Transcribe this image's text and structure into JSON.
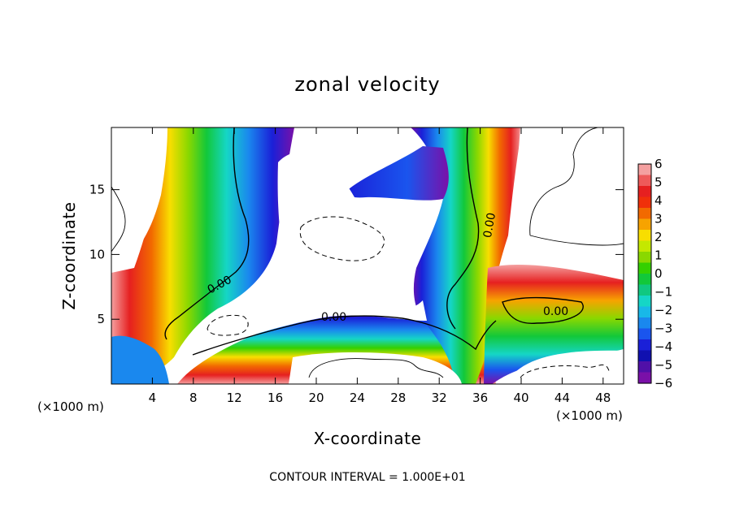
{
  "chart_data": {
    "type": "heatmap",
    "title": "zonal velocity",
    "xlabel": "X-coordinate",
    "ylabel": "Z-coordinate",
    "x_unit_left": "(×1000 m)",
    "x_unit_right": "(×1000 m)",
    "footer": "CONTOUR INTERVAL = 1.000E+01",
    "xlim": [
      0,
      50
    ],
    "ylim": [
      0,
      19.8
    ],
    "x_ticks": [
      "4",
      "8",
      "12",
      "16",
      "20",
      "24",
      "28",
      "32",
      "36",
      "40",
      "44",
      "48"
    ],
    "x_tick_values": [
      4,
      8,
      12,
      16,
      20,
      24,
      28,
      32,
      36,
      40,
      44,
      48
    ],
    "y_ticks": [
      "5",
      "10",
      "15"
    ],
    "y_tick_values": [
      5,
      10,
      15
    ],
    "contour_labels": [
      "0.00",
      "0.00",
      "0.00",
      "0.00"
    ],
    "colorbar": {
      "labels": [
        "6",
        "5",
        "4",
        "3",
        "2",
        "1",
        "0",
        "−1",
        "−2",
        "−3",
        "−4",
        "−5",
        "−6"
      ],
      "min": -6,
      "max": 6,
      "colors": [
        "#f4a0a0",
        "#ee5a5a",
        "#e62020",
        "#f0300a",
        "#f26a00",
        "#f7a300",
        "#f8de00",
        "#c4e800",
        "#8ad800",
        "#34d000",
        "#12c83a",
        "#10c880",
        "#15d6c6",
        "#18b8e8",
        "#1a88ee",
        "#1a55ee",
        "#1a20d8",
        "#1010b0",
        "#5010a8",
        "#7a10a8"
      ]
    },
    "features": [
      {
        "name": "left-column",
        "x0": 2.8,
        "x1": 15,
        "z": [
          6,
          19.8
        ],
        "min": -5,
        "max": 5
      },
      {
        "name": "central-jet",
        "x0": 20,
        "x1": 32,
        "z": [
          1.5,
          5
        ],
        "min": -6,
        "max": 6
      },
      {
        "name": "right-column",
        "x0": 29,
        "x1": 40,
        "z": [
          0,
          19.8
        ],
        "min": -6,
        "max": 6
      },
      {
        "name": "right-layer",
        "x0": 38,
        "x1": 50,
        "z": [
          3,
          8
        ],
        "min": -5,
        "max": 5
      }
    ]
  }
}
